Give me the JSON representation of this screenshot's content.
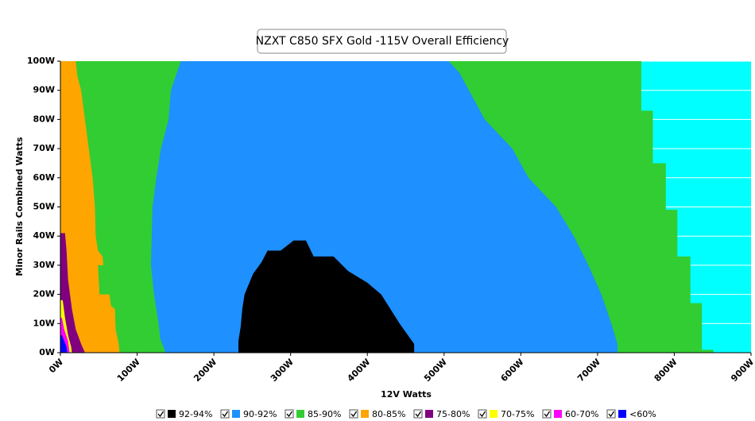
{
  "chart_data": {
    "type": "region",
    "title": "NZXT C850 SFX Gold -115V Overall Efficiency",
    "x_label": "12V Watts",
    "y_label": "Minor Rails Combined Watts",
    "xlim": [
      0,
      900
    ],
    "ylim": [
      0,
      100
    ],
    "xticks": [
      {
        "value": 0,
        "label": "0W"
      },
      {
        "value": 100,
        "label": "100W"
      },
      {
        "value": 200,
        "label": "200W"
      },
      {
        "value": 300,
        "label": "300W"
      },
      {
        "value": 400,
        "label": "400W"
      },
      {
        "value": 500,
        "label": "500W"
      },
      {
        "value": 600,
        "label": "600W"
      },
      {
        "value": 700,
        "label": "700W"
      },
      {
        "value": 800,
        "label": "800W"
      },
      {
        "value": 900,
        "label": "900W"
      }
    ],
    "yticks": [
      {
        "value": 0,
        "label": "0W"
      },
      {
        "value": 10,
        "label": "10W"
      },
      {
        "value": 20,
        "label": "20W"
      },
      {
        "value": 30,
        "label": "30W"
      },
      {
        "value": 40,
        "label": "40W"
      },
      {
        "value": 50,
        "label": "50W"
      },
      {
        "value": 60,
        "label": "60W"
      },
      {
        "value": 70,
        "label": "70W"
      },
      {
        "value": 80,
        "label": "80W"
      },
      {
        "value": 90,
        "label": "90W"
      },
      {
        "value": 100,
        "label": "100W"
      }
    ],
    "grid": true,
    "background": "#00ffff",
    "series": [
      {
        "name": "92-94%",
        "color": "#000000",
        "x": [
          232,
          232,
          235,
          237,
          240,
          251,
          262,
          270,
          287,
          304,
          320,
          330,
          356,
          375,
          400,
          418,
          442,
          461,
          461
        ],
        "y": [
          0,
          4,
          9,
          15,
          20,
          27,
          31,
          35,
          35,
          38.5,
          38.5,
          33,
          33,
          28,
          24,
          20,
          10,
          3,
          0
        ]
      },
      {
        "name": "90-92%",
        "color": "#1e90ff",
        "x": [
          137,
          130,
          128,
          122,
          118,
          120,
          125,
          131,
          141,
          144,
          157,
          506,
          520,
          553,
          589,
          610,
          646,
          669,
          688,
          705,
          718,
          726,
          726
        ],
        "y": [
          0,
          5,
          10,
          20,
          30,
          50,
          60,
          70,
          80,
          90,
          100,
          100,
          96,
          80,
          70,
          60,
          50,
          40,
          30,
          20,
          10,
          3,
          0
        ]
      },
      {
        "name": "85-90%",
        "color": "#32cd32",
        "x": [
          0,
          851,
          851,
          836,
          836,
          821,
          821,
          804,
          804,
          789,
          789,
          772,
          772,
          757,
          757,
          0
        ],
        "y": [
          0,
          0,
          1,
          1,
          17,
          17,
          33,
          33,
          49,
          49,
          65,
          65,
          83,
          83,
          100,
          100
        ]
      },
      {
        "name": "80-85%",
        "color": "#ffa500",
        "x": [
          0,
          77,
          76,
          72,
          71,
          66,
          64,
          51,
          49,
          56,
          55,
          49,
          46,
          45,
          42,
          37,
          32,
          27,
          22,
          20,
          0
        ],
        "y": [
          0,
          0,
          3,
          8,
          15,
          16,
          20,
          20,
          30,
          30,
          33,
          35,
          40,
          50,
          60,
          70,
          80,
          90,
          95,
          100,
          100
        ]
      },
      {
        "name": "75-80%",
        "color": "#800080",
        "x": [
          0,
          32,
          27,
          20,
          15,
          10,
          8,
          6,
          0
        ],
        "y": [
          0,
          0,
          3,
          8,
          15,
          25,
          35,
          41,
          41
        ]
      },
      {
        "name": "70-75%",
        "color": "#ffff00",
        "x": [
          0,
          15,
          14,
          10,
          6,
          3,
          0
        ],
        "y": [
          0,
          0,
          2,
          6,
          12,
          18,
          18
        ]
      },
      {
        "name": "60-70%",
        "color": "#ff00ff",
        "x": [
          0,
          12,
          10,
          5,
          2,
          0
        ],
        "y": [
          0,
          0,
          4,
          8,
          12,
          12
        ]
      },
      {
        "name": "<60%",
        "color": "#0000ff",
        "x": [
          0,
          9,
          8,
          5,
          2,
          0
        ],
        "y": [
          0,
          0,
          2,
          4,
          6,
          6
        ]
      }
    ]
  }
}
